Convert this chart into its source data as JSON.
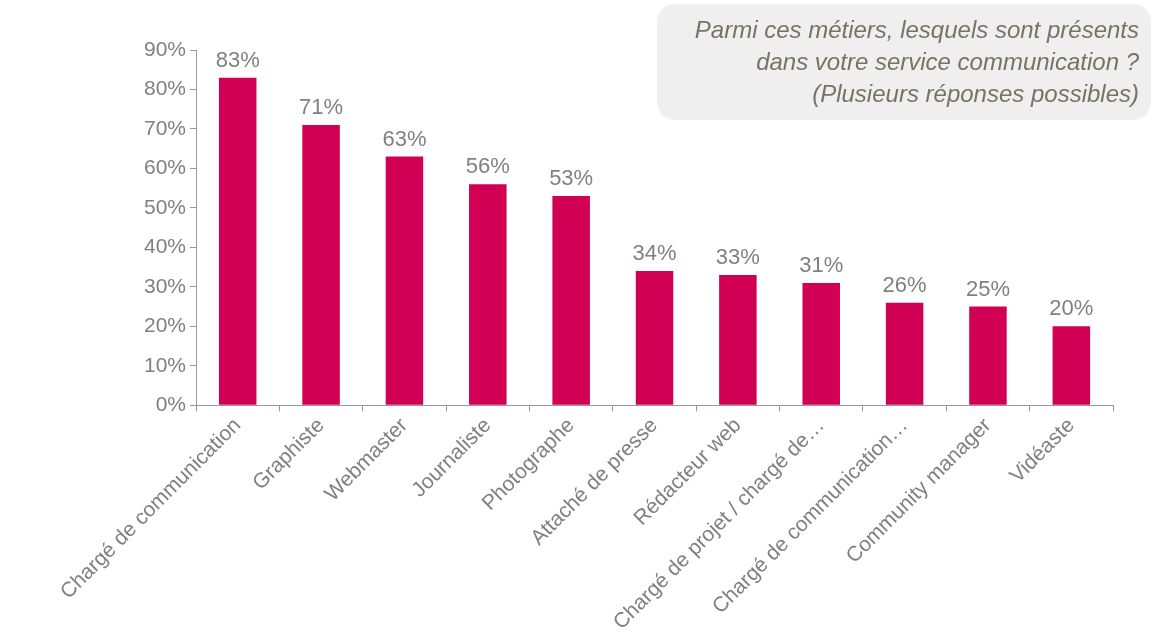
{
  "chart_data": {
    "type": "bar",
    "title": "Parmi ces métiers, lesquels sont présents dans votre service communication ? (Plusieurs réponses possibles)",
    "categories": [
      "Chargé de communication",
      "Graphiste",
      "Webmaster",
      "Journaliste",
      "Photographe",
      "Attaché de presse",
      "Rédacteur web",
      "Chargé de projet / chargé de…",
      "Chargé de communication…",
      "Community manager",
      "Vidéaste"
    ],
    "values": [
      83,
      71,
      63,
      56,
      53,
      34,
      33,
      31,
      26,
      25,
      20
    ],
    "value_labels": [
      "83%",
      "71%",
      "63%",
      "56%",
      "53%",
      "34%",
      "33%",
      "31%",
      "26%",
      "25%",
      "20%"
    ],
    "color": "#d20055",
    "ylim": [
      0,
      90
    ],
    "yticks": [
      {
        "value": 0,
        "label": "0%"
      },
      {
        "value": 10,
        "label": "10%"
      },
      {
        "value": 20,
        "label": "20%"
      },
      {
        "value": 30,
        "label": "30%"
      },
      {
        "value": 40,
        "label": "40%"
      },
      {
        "value": 50,
        "label": "50%"
      },
      {
        "value": 60,
        "label": "60%"
      },
      {
        "value": 70,
        "label": "70%"
      },
      {
        "value": 80,
        "label": "80%"
      },
      {
        "value": 90,
        "label": "90%"
      }
    ],
    "grid": false,
    "legend": false
  }
}
